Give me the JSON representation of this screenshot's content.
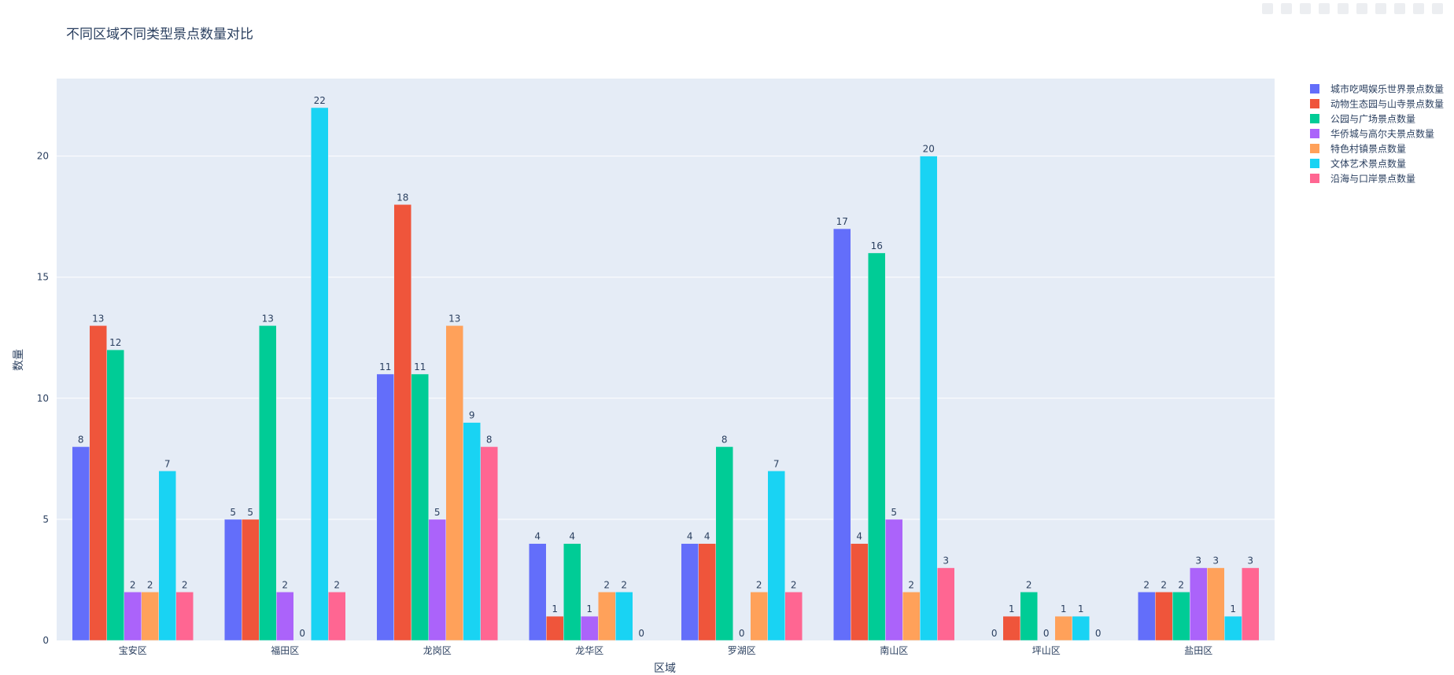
{
  "chart_data": {
    "type": "bar",
    "title": "不同区域不同类型景点数量对比",
    "xlabel": "区域",
    "ylabel": "数量",
    "ylim": [
      0,
      23.2
    ],
    "yticks": [
      0,
      5,
      10,
      15,
      20
    ],
    "grid": true,
    "legend_position": "top-right",
    "categories": [
      "宝安区",
      "福田区",
      "龙岗区",
      "龙华区",
      "罗湖区",
      "南山区",
      "坪山区",
      "盐田区"
    ],
    "series": [
      {
        "name": "城市吃喝娱乐世界景点数量",
        "color": "#636efa",
        "values": [
          8,
          5,
          11,
          4,
          4,
          17,
          0,
          2
        ]
      },
      {
        "name": "动物生态园与山寺景点数量",
        "color": "#EF553B",
        "values": [
          13,
          5,
          18,
          1,
          4,
          4,
          1,
          2
        ]
      },
      {
        "name": "公园与广场景点数量",
        "color": "#00cc96",
        "values": [
          12,
          13,
          11,
          4,
          8,
          16,
          2,
          2
        ]
      },
      {
        "name": "华侨城与高尔夫景点数量",
        "color": "#ab63fa",
        "values": [
          2,
          2,
          5,
          1,
          0,
          5,
          0,
          3
        ]
      },
      {
        "name": "特色村镇景点数量",
        "color": "#FFA15A",
        "values": [
          2,
          0,
          13,
          2,
          2,
          2,
          1,
          3
        ]
      },
      {
        "name": "文体艺术景点数量",
        "color": "#19d3f3",
        "values": [
          7,
          22,
          9,
          2,
          7,
          20,
          1,
          1
        ]
      },
      {
        "name": "沿海与口岸景点数量",
        "color": "#FF6692",
        "values": [
          2,
          2,
          8,
          0,
          2,
          3,
          0,
          3
        ]
      }
    ]
  },
  "colors": {
    "plot_background": "#e5ecf6",
    "gridline": "#ffffff",
    "text": "#2a3f5f"
  }
}
